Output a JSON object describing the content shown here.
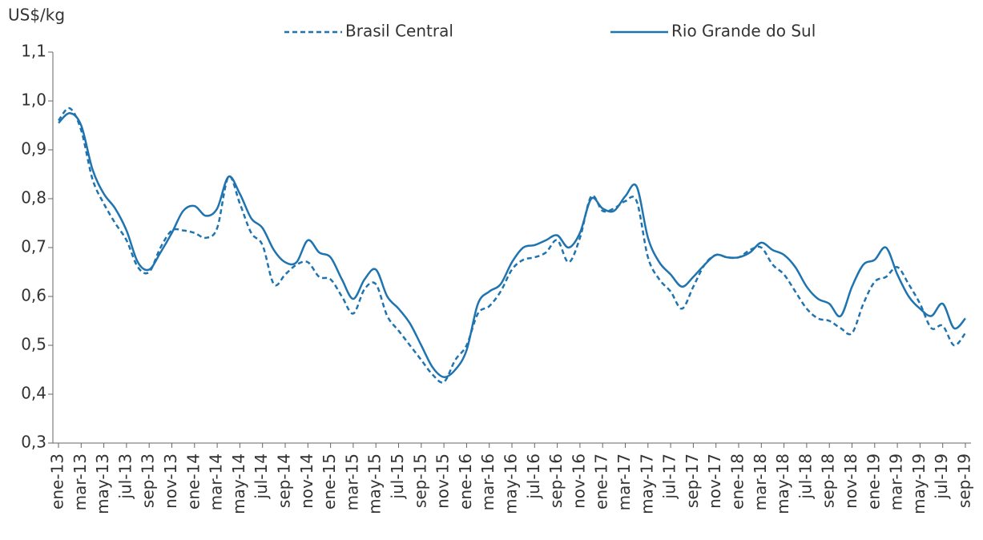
{
  "chart_data": {
    "type": "line",
    "y_label": "US$/kg",
    "categories": [
      "ene-13",
      null,
      "mar-13",
      null,
      "may-13",
      null,
      "jul-13",
      null,
      "sep-13",
      null,
      "nov-13",
      null,
      "ene-14",
      null,
      "mar-14",
      null,
      "may-14",
      null,
      "jul-14",
      null,
      "sep-14",
      null,
      "nov-14",
      null,
      "ene-15",
      null,
      "mar-15",
      null,
      "may-15",
      null,
      "jul-15",
      null,
      "sep-15",
      null,
      "nov-15",
      null,
      "ene-16",
      null,
      "mar-16",
      null,
      "may-16",
      null,
      "jul-16",
      null,
      "sep-16",
      null,
      "nov-16",
      null,
      "ene-17",
      null,
      "mar-17",
      null,
      "may-17",
      null,
      "jul-17",
      null,
      "sep-17",
      null,
      "nov-17",
      null,
      "ene-18",
      null,
      "mar-18",
      null,
      "may-18",
      null,
      "jul-18",
      null,
      "sep-18",
      null,
      "nov-18",
      null,
      "ene-19",
      null,
      "mar-19",
      null,
      "may-19",
      null,
      "jul-19",
      null,
      "sep-19"
    ],
    "series": [
      {
        "name": "Brasil Central",
        "color": "#1f74b0",
        "dash": true,
        "values": [
          0.96,
          0.985,
          0.94,
          0.84,
          0.79,
          0.75,
          0.715,
          0.66,
          0.65,
          0.7,
          0.735,
          0.735,
          0.73,
          0.72,
          0.74,
          0.845,
          0.79,
          0.73,
          0.705,
          0.625,
          0.645,
          0.665,
          0.67,
          0.64,
          0.635,
          0.6,
          0.565,
          0.615,
          0.625,
          0.56,
          0.53,
          0.5,
          0.47,
          0.44,
          0.425,
          0.47,
          0.5,
          0.565,
          0.58,
          0.61,
          0.655,
          0.675,
          0.68,
          0.69,
          0.715,
          0.67,
          0.72,
          0.805,
          0.775,
          0.78,
          0.795,
          0.795,
          0.68,
          0.635,
          0.61,
          0.575,
          0.62,
          0.665,
          0.685,
          0.68,
          0.68,
          0.695,
          0.7,
          0.665,
          0.645,
          0.61,
          0.575,
          0.555,
          0.55,
          0.535,
          0.525,
          0.585,
          0.63,
          0.64,
          0.66,
          0.625,
          0.585,
          0.535,
          0.54,
          0.5,
          0.525
        ]
      },
      {
        "name": "Rio Grande do Sul",
        "color": "#1f74b0",
        "dash": false,
        "values": [
          0.955,
          0.975,
          0.95,
          0.86,
          0.81,
          0.78,
          0.735,
          0.67,
          0.655,
          0.69,
          0.73,
          0.775,
          0.785,
          0.765,
          0.78,
          0.845,
          0.81,
          0.76,
          0.74,
          0.695,
          0.67,
          0.67,
          0.715,
          0.69,
          0.68,
          0.635,
          0.595,
          0.635,
          0.655,
          0.6,
          0.575,
          0.545,
          0.5,
          0.455,
          0.435,
          0.45,
          0.49,
          0.585,
          0.61,
          0.625,
          0.67,
          0.7,
          0.705,
          0.715,
          0.725,
          0.7,
          0.73,
          0.8,
          0.78,
          0.775,
          0.805,
          0.825,
          0.72,
          0.67,
          0.645,
          0.62,
          0.64,
          0.665,
          0.685,
          0.68,
          0.68,
          0.69,
          0.71,
          0.695,
          0.685,
          0.66,
          0.62,
          0.595,
          0.585,
          0.56,
          0.62,
          0.665,
          0.675,
          0.7,
          0.645,
          0.6,
          0.575,
          0.56,
          0.585,
          0.535,
          0.555
        ]
      }
    ],
    "ylim": [
      0.3,
      1.1
    ],
    "yticks": [
      {
        "value": 0.3,
        "label": "0,3"
      },
      {
        "value": 0.4,
        "label": "0,4"
      },
      {
        "value": 0.5,
        "label": "0,5"
      },
      {
        "value": 0.6,
        "label": "0,6"
      },
      {
        "value": 0.7,
        "label": "0,7"
      },
      {
        "value": 0.8,
        "label": "0,8"
      },
      {
        "value": 0.9,
        "label": "0,9"
      },
      {
        "value": 1.0,
        "label": "1,0"
      },
      {
        "value": 1.1,
        "label": "1,1"
      }
    ]
  }
}
